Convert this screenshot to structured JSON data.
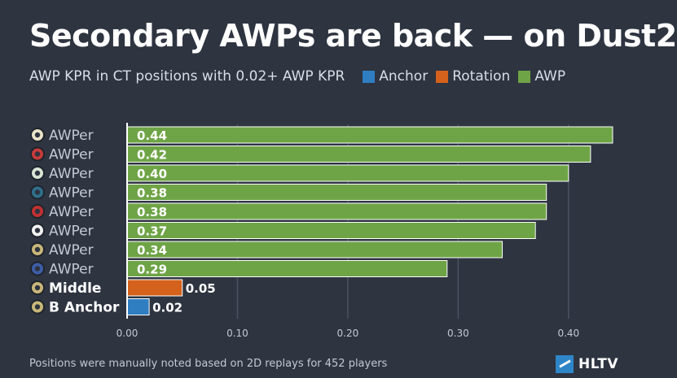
{
  "title": "Secondary AWPs are back — on Dust2",
  "subtitle": "AWP KPR in CT positions with 0.02+ AWP KPR",
  "legend": [
    {
      "label": "Anchor",
      "color": "#2f7ec1"
    },
    {
      "label": "Rotation",
      "color": "#d4621c"
    },
    {
      "label": "AWP",
      "color": "#6ea446"
    }
  ],
  "footer": "Positions were manually noted based on 2D replays for 452 players",
  "brand": "HLTV",
  "chart_data": {
    "type": "bar",
    "orientation": "horizontal",
    "categories": [
      "AWPer",
      "AWPer",
      "AWPer",
      "AWPer",
      "AWPer",
      "AWPer",
      "AWPer",
      "AWPer",
      "Middle",
      "B Anchor"
    ],
    "values": [
      0.44,
      0.42,
      0.4,
      0.38,
      0.38,
      0.37,
      0.34,
      0.29,
      0.05,
      0.02
    ],
    "value_labels": [
      "0.44",
      "0.42",
      "0.40",
      "0.38",
      "0.38",
      "0.37",
      "0.34",
      "0.29",
      "0.05",
      "0.02"
    ],
    "groups": [
      "AWP",
      "AWP",
      "AWP",
      "AWP",
      "AWP",
      "AWP",
      "AWP",
      "AWP",
      "Rotation",
      "Anchor"
    ],
    "team_colors": [
      "#e9e2c8",
      "#c63b3b",
      "#d9e4d4",
      "#2f6f8a",
      "#c23232",
      "#f2f2f2",
      "#c9b77a",
      "#3d5ea6",
      "#c9b77a",
      "#c9b77a"
    ],
    "x_ticks": [
      "0.00",
      "0.10",
      "0.20",
      "0.30",
      "0.40"
    ],
    "x_tick_values": [
      0,
      0.1,
      0.2,
      0.3,
      0.4
    ],
    "xlim": [
      0,
      0.44
    ],
    "grid": true,
    "legend_position": "top",
    "title": "",
    "xlabel": "",
    "ylabel": ""
  }
}
